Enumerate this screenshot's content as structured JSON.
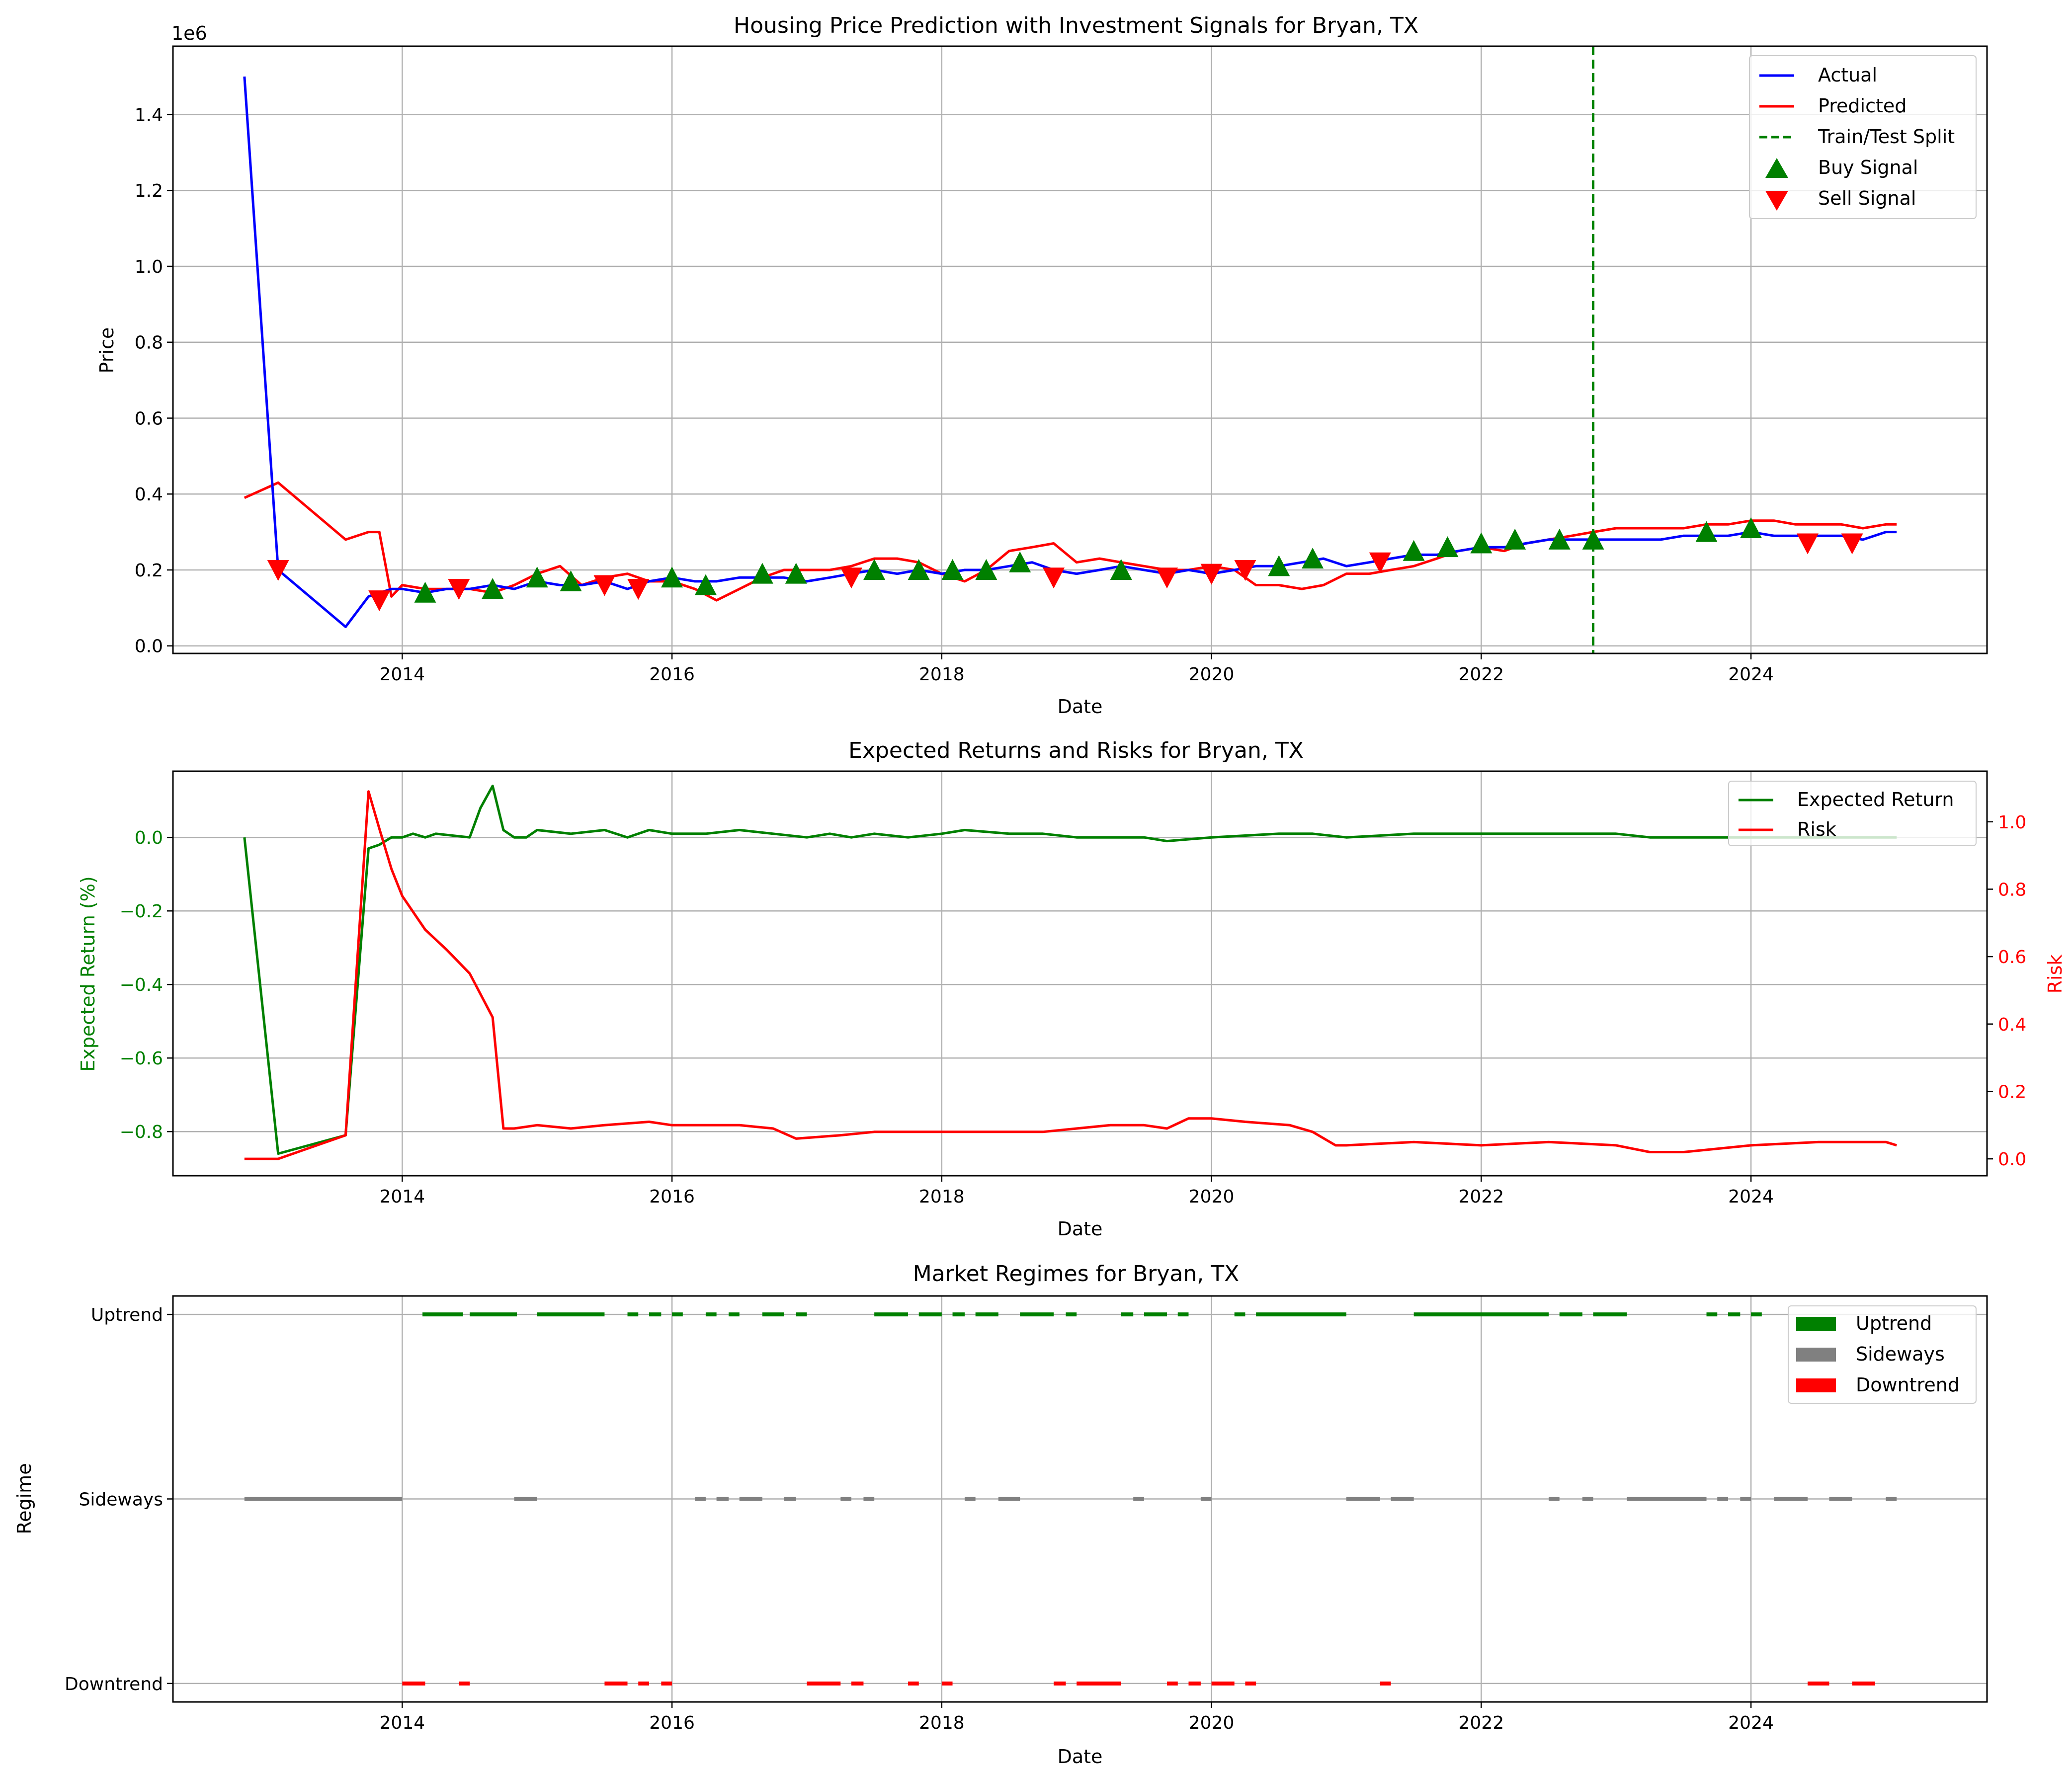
{
  "chart_data": [
    {
      "type": "line",
      "title": "Housing Price Prediction with Investment Signals for Bryan, TX",
      "xlabel": "Date",
      "ylabel": "Price",
      "offset_label": "1e6",
      "xlim": [
        2012.3,
        2025.75
      ],
      "ylim": [
        -0.02,
        1.58
      ],
      "x_ticks": [
        2014,
        2016,
        2018,
        2020,
        2022,
        2024
      ],
      "y_ticks": [
        "0.0",
        "0.2",
        "0.4",
        "0.6",
        "0.8",
        "1.0",
        "1.2",
        "1.4"
      ],
      "grid": true,
      "legend": {
        "placement": "top-right",
        "entries": [
          "Actual",
          "Predicted",
          "Train/Test Split",
          "Buy Signal",
          "Sell Signal"
        ]
      },
      "colors": {
        "actual": "#0000ff",
        "predicted": "#ff0000",
        "split": "#008000",
        "buy": "#008000",
        "sell": "#ff0000"
      },
      "series": [
        {
          "name": "Actual",
          "x": [
            2012.83,
            2013.08,
            2013.58,
            2013.75,
            2013.92,
            2014.0,
            2014.17,
            2014.33,
            2014.5,
            2014.67,
            2014.83,
            2015.0,
            2015.17,
            2015.33,
            2015.5,
            2015.67,
            2015.83,
            2016.0,
            2016.17,
            2016.33,
            2016.5,
            2016.67,
            2016.83,
            2017.0,
            2017.17,
            2017.33,
            2017.5,
            2017.67,
            2017.83,
            2018.0,
            2018.17,
            2018.33,
            2018.5,
            2018.67,
            2018.83,
            2019.0,
            2019.17,
            2019.33,
            2019.5,
            2019.67,
            2019.83,
            2020.0,
            2020.17,
            2020.33,
            2020.5,
            2020.67,
            2020.83,
            2021.0,
            2021.17,
            2021.33,
            2021.5,
            2021.67,
            2021.83,
            2022.0,
            2022.17,
            2022.33,
            2022.5,
            2022.67,
            2022.83,
            2023.0,
            2023.17,
            2023.33,
            2023.5,
            2023.67,
            2023.83,
            2024.0,
            2024.17,
            2024.33,
            2024.5,
            2024.67,
            2024.83,
            2025.0,
            2025.08
          ],
          "values": [
            1.5,
            0.2,
            0.05,
            0.13,
            0.15,
            0.15,
            0.14,
            0.15,
            0.15,
            0.16,
            0.15,
            0.17,
            0.16,
            0.16,
            0.17,
            0.15,
            0.17,
            0.18,
            0.17,
            0.17,
            0.18,
            0.18,
            0.18,
            0.17,
            0.18,
            0.19,
            0.2,
            0.19,
            0.2,
            0.19,
            0.2,
            0.2,
            0.21,
            0.22,
            0.2,
            0.19,
            0.2,
            0.21,
            0.2,
            0.19,
            0.2,
            0.19,
            0.2,
            0.21,
            0.21,
            0.22,
            0.23,
            0.21,
            0.22,
            0.23,
            0.24,
            0.24,
            0.25,
            0.26,
            0.26,
            0.27,
            0.28,
            0.28,
            0.28,
            0.28,
            0.28,
            0.28,
            0.29,
            0.29,
            0.29,
            0.3,
            0.29,
            0.29,
            0.29,
            0.29,
            0.28,
            0.3,
            0.3
          ]
        },
        {
          "name": "Predicted",
          "x": [
            2012.83,
            2013.08,
            2013.58,
            2013.75,
            2013.83,
            2013.92,
            2014.0,
            2014.17,
            2014.33,
            2014.5,
            2014.67,
            2014.83,
            2015.0,
            2015.17,
            2015.33,
            2015.5,
            2015.67,
            2015.83,
            2016.0,
            2016.17,
            2016.33,
            2016.5,
            2016.67,
            2016.83,
            2017.0,
            2017.17,
            2017.33,
            2017.5,
            2017.67,
            2017.83,
            2018.0,
            2018.17,
            2018.33,
            2018.5,
            2018.67,
            2018.83,
            2019.0,
            2019.17,
            2019.33,
            2019.5,
            2019.67,
            2019.83,
            2020.0,
            2020.17,
            2020.33,
            2020.5,
            2020.67,
            2020.83,
            2021.0,
            2021.17,
            2021.33,
            2021.5,
            2021.67,
            2021.83,
            2022.0,
            2022.17,
            2022.33,
            2022.5,
            2022.67,
            2022.83,
            2023.0,
            2023.17,
            2023.33,
            2023.5,
            2023.67,
            2023.83,
            2024.0,
            2024.17,
            2024.33,
            2024.5,
            2024.67,
            2024.83,
            2025.0,
            2025.08
          ],
          "values": [
            0.39,
            0.43,
            0.28,
            0.3,
            0.3,
            0.13,
            0.16,
            0.15,
            0.15,
            0.15,
            0.14,
            0.16,
            0.19,
            0.21,
            0.16,
            0.18,
            0.19,
            0.17,
            0.17,
            0.15,
            0.12,
            0.15,
            0.18,
            0.2,
            0.2,
            0.2,
            0.21,
            0.23,
            0.23,
            0.22,
            0.19,
            0.17,
            0.2,
            0.25,
            0.26,
            0.27,
            0.22,
            0.23,
            0.22,
            0.21,
            0.2,
            0.2,
            0.21,
            0.2,
            0.16,
            0.16,
            0.15,
            0.16,
            0.19,
            0.19,
            0.2,
            0.21,
            0.23,
            0.25,
            0.26,
            0.25,
            0.27,
            0.28,
            0.29,
            0.3,
            0.31,
            0.31,
            0.31,
            0.31,
            0.32,
            0.32,
            0.33,
            0.33,
            0.32,
            0.32,
            0.32,
            0.31,
            0.32,
            0.32
          ]
        }
      ],
      "train_test_split_x": 2022.83,
      "buy_signals": {
        "x": [
          2014.17,
          2014.67,
          2015.0,
          2015.25,
          2016.0,
          2016.25,
          2016.67,
          2016.92,
          2017.5,
          2017.83,
          2018.08,
          2018.33,
          2018.58,
          2019.33,
          2020.5,
          2020.75,
          2021.5,
          2021.75,
          2022.0,
          2022.25,
          2022.58,
          2022.83,
          2023.67,
          2024.0
        ],
        "values": [
          0.14,
          0.15,
          0.18,
          0.17,
          0.18,
          0.16,
          0.19,
          0.19,
          0.2,
          0.2,
          0.2,
          0.2,
          0.22,
          0.2,
          0.21,
          0.23,
          0.25,
          0.26,
          0.27,
          0.28,
          0.28,
          0.28,
          0.3,
          0.31
        ]
      },
      "sell_signals": {
        "x": [
          2013.08,
          2013.83,
          2014.42,
          2015.5,
          2015.75,
          2017.33,
          2018.83,
          2019.67,
          2020.0,
          2020.25,
          2021.25,
          2024.42,
          2024.75
        ],
        "values": [
          0.2,
          0.12,
          0.15,
          0.16,
          0.15,
          0.18,
          0.18,
          0.18,
          0.19,
          0.2,
          0.22,
          0.27,
          0.27
        ]
      }
    },
    {
      "type": "line",
      "title": "Expected Returns and Risks for Bryan, TX",
      "xlabel": "Date",
      "ylabel": "Expected Return (%)",
      "ylabel_right": "Risk",
      "xlim": [
        2012.3,
        2025.75
      ],
      "ylim": [
        -0.92,
        0.18
      ],
      "ylim_right": [
        -0.05,
        1.15
      ],
      "x_ticks": [
        2014,
        2016,
        2018,
        2020,
        2022,
        2024
      ],
      "y_ticks": [
        "−0.8",
        "−0.6",
        "−0.4",
        "−0.2",
        "0.0"
      ],
      "y_ticks_right": [
        "0.0",
        "0.2",
        "0.4",
        "0.6",
        "0.8",
        "1.0"
      ],
      "grid": true,
      "legend": {
        "placement": "top-right",
        "entries": [
          "Expected Return",
          "Risk"
        ]
      },
      "colors": {
        "return": "#008000",
        "risk": "#ff0000"
      },
      "series": [
        {
          "name": "Expected Return",
          "axis": "left",
          "x": [
            2012.83,
            2013.08,
            2013.58,
            2013.75,
            2013.83,
            2013.92,
            2014.0,
            2014.08,
            2014.17,
            2014.25,
            2014.5,
            2014.58,
            2014.67,
            2014.75,
            2014.83,
            2014.92,
            2015.0,
            2015.25,
            2015.5,
            2015.67,
            2015.83,
            2016.0,
            2016.25,
            2016.5,
            2016.75,
            2017.0,
            2017.17,
            2017.33,
            2017.5,
            2017.75,
            2018.0,
            2018.17,
            2018.5,
            2018.75,
            2019.0,
            2019.25,
            2019.5,
            2019.67,
            2020.0,
            2020.5,
            2020.75,
            2021.0,
            2021.5,
            2022.0,
            2022.25,
            2022.5,
            2023.0,
            2023.25,
            2023.5,
            2024.0,
            2024.5,
            2025.0,
            2025.08
          ],
          "values": [
            0.0,
            -0.86,
            -0.81,
            -0.03,
            -0.02,
            0.0,
            0.0,
            0.01,
            0.0,
            0.01,
            0.0,
            0.08,
            0.14,
            0.02,
            0.0,
            0.0,
            0.02,
            0.01,
            0.02,
            0.0,
            0.02,
            0.01,
            0.01,
            0.02,
            0.01,
            0.0,
            0.01,
            0.0,
            0.01,
            0.0,
            0.01,
            0.02,
            0.01,
            0.01,
            0.0,
            0.0,
            0.0,
            -0.01,
            0.0,
            0.01,
            0.01,
            0.0,
            0.01,
            0.01,
            0.01,
            0.01,
            0.01,
            0.0,
            0.0,
            0.0,
            0.0,
            0.0,
            0.0
          ]
        },
        {
          "name": "Risk",
          "axis": "right",
          "x": [
            2012.83,
            2013.08,
            2013.58,
            2013.75,
            2013.83,
            2013.92,
            2014.0,
            2014.17,
            2014.33,
            2014.5,
            2014.67,
            2014.75,
            2014.83,
            2015.0,
            2015.25,
            2015.5,
            2015.83,
            2016.0,
            2016.25,
            2016.5,
            2016.75,
            2016.92,
            2017.25,
            2017.5,
            2017.75,
            2018.0,
            2018.25,
            2018.5,
            2018.75,
            2019.0,
            2019.25,
            2019.5,
            2019.67,
            2019.83,
            2020.0,
            2020.25,
            2020.58,
            2020.75,
            2020.92,
            2021.0,
            2021.5,
            2022.0,
            2022.5,
            2023.0,
            2023.25,
            2023.5,
            2024.0,
            2024.5,
            2025.0,
            2025.08
          ],
          "values": [
            0.0,
            0.0,
            0.07,
            1.09,
            0.98,
            0.86,
            0.78,
            0.68,
            0.62,
            0.55,
            0.42,
            0.09,
            0.09,
            0.1,
            0.09,
            0.1,
            0.11,
            0.1,
            0.1,
            0.1,
            0.09,
            0.06,
            0.07,
            0.08,
            0.08,
            0.08,
            0.08,
            0.08,
            0.08,
            0.09,
            0.1,
            0.1,
            0.09,
            0.12,
            0.12,
            0.11,
            0.1,
            0.08,
            0.04,
            0.04,
            0.05,
            0.04,
            0.05,
            0.04,
            0.02,
            0.02,
            0.04,
            0.05,
            0.05,
            0.04
          ]
        }
      ]
    },
    {
      "type": "scatter",
      "title": "Market Regimes for Bryan, TX",
      "xlabel": "Date",
      "ylabel": "Regime",
      "xlim": [
        2012.3,
        2025.75
      ],
      "x_ticks": [
        2014,
        2016,
        2018,
        2020,
        2022,
        2024
      ],
      "categories": [
        "Downtrend",
        "Sideways",
        "Uptrend"
      ],
      "grid": true,
      "legend": {
        "placement": "top-right",
        "entries": [
          "Uptrend",
          "Sideways",
          "Downtrend"
        ]
      },
      "colors": {
        "Uptrend": "#008000",
        "Sideways": "#808080",
        "Downtrend": "#ff0000"
      },
      "segments": {
        "Uptrend": [
          [
            2014.15,
            2014.45
          ],
          [
            2014.5,
            2014.85
          ],
          [
            2015.0,
            2015.5
          ],
          [
            2015.67,
            2015.75
          ],
          [
            2015.83,
            2015.92
          ],
          [
            2016.0,
            2016.08
          ],
          [
            2016.25,
            2016.33
          ],
          [
            2016.42,
            2016.5
          ],
          [
            2016.67,
            2016.83
          ],
          [
            2016.92,
            2017.0
          ],
          [
            2017.5,
            2017.75
          ],
          [
            2017.83,
            2018.0
          ],
          [
            2018.08,
            2018.17
          ],
          [
            2018.25,
            2018.42
          ],
          [
            2018.58,
            2018.83
          ],
          [
            2018.92,
            2019.0
          ],
          [
            2019.33,
            2019.42
          ],
          [
            2019.5,
            2019.67
          ],
          [
            2019.75,
            2019.83
          ],
          [
            2020.17,
            2020.25
          ],
          [
            2020.33,
            2021.0
          ],
          [
            2021.5,
            2022.5
          ],
          [
            2022.58,
            2022.75
          ],
          [
            2022.83,
            2023.08
          ],
          [
            2023.67,
            2023.75
          ],
          [
            2023.83,
            2023.92
          ],
          [
            2024.0,
            2024.08
          ]
        ],
        "Sideways": [
          [
            2012.83,
            2014.0
          ],
          [
            2014.83,
            2015.0
          ],
          [
            2016.17,
            2016.25
          ],
          [
            2016.33,
            2016.42
          ],
          [
            2016.5,
            2016.67
          ],
          [
            2016.83,
            2016.92
          ],
          [
            2017.25,
            2017.33
          ],
          [
            2017.42,
            2017.5
          ],
          [
            2018.17,
            2018.25
          ],
          [
            2018.42,
            2018.58
          ],
          [
            2019.42,
            2019.5
          ],
          [
            2019.92,
            2020.0
          ],
          [
            2021.0,
            2021.25
          ],
          [
            2021.33,
            2021.5
          ],
          [
            2022.5,
            2022.58
          ],
          [
            2022.75,
            2022.83
          ],
          [
            2023.08,
            2023.67
          ],
          [
            2023.75,
            2023.83
          ],
          [
            2023.92,
            2024.0
          ],
          [
            2024.17,
            2024.42
          ],
          [
            2024.58,
            2024.75
          ],
          [
            2025.0,
            2025.08
          ]
        ],
        "Downtrend": [
          [
            2014.0,
            2014.17
          ],
          [
            2014.42,
            2014.5
          ],
          [
            2015.5,
            2015.67
          ],
          [
            2015.75,
            2015.83
          ],
          [
            2015.92,
            2016.0
          ],
          [
            2017.0,
            2017.25
          ],
          [
            2017.33,
            2017.42
          ],
          [
            2017.75,
            2017.83
          ],
          [
            2018.0,
            2018.08
          ],
          [
            2018.83,
            2018.92
          ],
          [
            2019.0,
            2019.33
          ],
          [
            2019.67,
            2019.75
          ],
          [
            2019.83,
            2019.92
          ],
          [
            2020.0,
            2020.17
          ],
          [
            2020.25,
            2020.33
          ],
          [
            2021.25,
            2021.33
          ],
          [
            2024.42,
            2024.58
          ],
          [
            2024.75,
            2024.92
          ]
        ]
      }
    }
  ]
}
